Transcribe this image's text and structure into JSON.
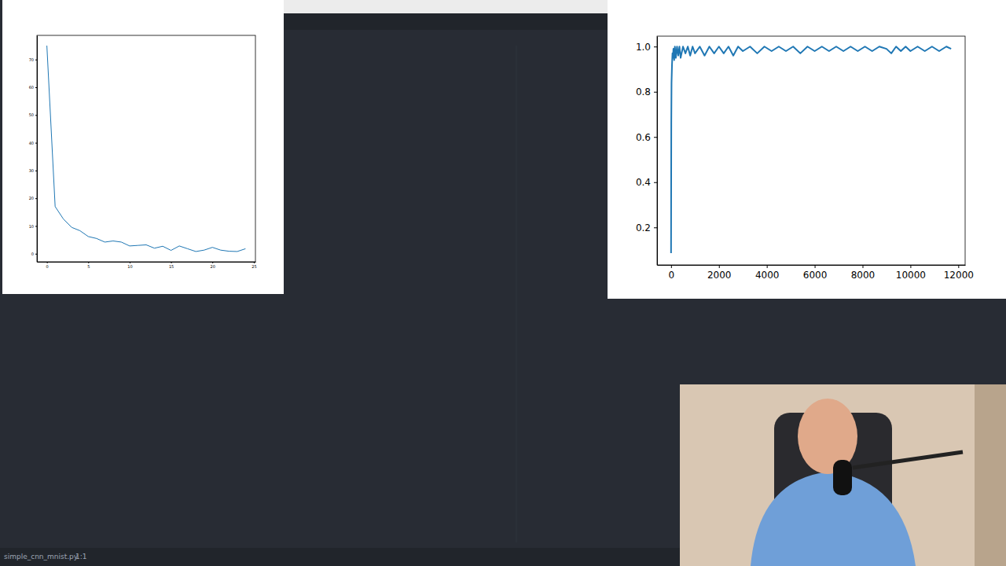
{
  "chart_data": [
    {
      "type": "line",
      "color": "#1f77b4",
      "x": [
        0,
        1,
        2,
        3,
        4,
        5,
        6,
        7,
        8,
        9,
        10,
        11,
        12,
        13,
        14,
        15,
        16,
        17,
        18,
        19,
        20,
        21,
        22,
        23,
        24
      ],
      "values": [
        75,
        17,
        12.5,
        9.5,
        8.3,
        6.2,
        5.5,
        4.2,
        4.6,
        4.2,
        2.8,
        3.0,
        3.2,
        2.0,
        2.7,
        1.2,
        2.8,
        1.8,
        0.8,
        1.3,
        2.3,
        1.3,
        0.9,
        0.8,
        1.8
      ],
      "xlim": [
        -1.2,
        25.2
      ],
      "ylim": [
        -2.9,
        78.7
      ],
      "xticks": [
        0,
        5,
        10,
        15,
        20,
        25
      ],
      "yticks": [
        0,
        10,
        20,
        30,
        40,
        50,
        60,
        70
      ]
    },
    {
      "type": "line",
      "color": "#1f77b4",
      "x": [
        0,
        10,
        20,
        40,
        60,
        80,
        100,
        130,
        160,
        200,
        250,
        300,
        350,
        400,
        500,
        600,
        700,
        800,
        900,
        1000,
        1200,
        1400,
        1600,
        1800,
        2000,
        2200,
        2400,
        2600,
        2800,
        3000,
        3300,
        3600,
        3900,
        4200,
        4500,
        4800,
        5100,
        5400,
        5700,
        6000,
        6300,
        6600,
        6900,
        7200,
        7500,
        7800,
        8100,
        8400,
        8700,
        9000,
        9200,
        9400,
        9600,
        9800,
        10000,
        10300,
        10600,
        10900,
        11200,
        11500,
        11700
      ],
      "values": [
        0.086,
        0.66,
        0.84,
        0.92,
        0.97,
        0.95,
        0.99,
        0.94,
        1.0,
        0.95,
        1.0,
        0.96,
        1.0,
        0.95,
        1.0,
        0.97,
        1.0,
        0.96,
        1.0,
        0.97,
        1.0,
        0.96,
        1.0,
        0.97,
        1.0,
        0.97,
        1.0,
        0.96,
        1.0,
        0.98,
        1.0,
        0.97,
        1.0,
        0.98,
        1.0,
        0.98,
        1.0,
        0.97,
        1.0,
        0.98,
        1.0,
        0.98,
        1.0,
        0.98,
        1.0,
        0.98,
        1.0,
        0.98,
        1.0,
        0.99,
        0.97,
        1.0,
        0.98,
        1.0,
        0.98,
        1.0,
        0.98,
        1.0,
        0.98,
        1.0,
        0.99
      ],
      "xlim": [
        -585,
        12285
      ],
      "ylim": [
        0.034,
        1.046
      ],
      "xticks": [
        0,
        2000,
        4000,
        6000,
        8000,
        10000,
        12000
      ],
      "yticks": [
        0.2,
        0.4,
        0.6,
        0.8,
        {
          "value": 1,
          "label": "1.0"
        }
      ]
    }
  ],
  "editor": {
    "filename": "simple_cnn_mnist.py",
    "cursor": "1:1"
  }
}
